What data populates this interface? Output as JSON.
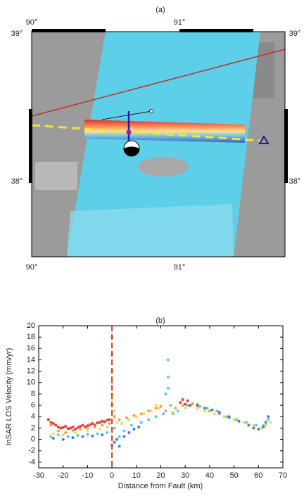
{
  "map": {
    "title": "(a)",
    "top_labels": [
      "90°",
      "91°"
    ],
    "bottom_labels": [
      "90°",
      "91°"
    ],
    "left_labels": [
      "39°",
      "38°"
    ],
    "right_labels": [
      "39°",
      "38°"
    ]
  },
  "chart_data": {
    "type": "scatter",
    "title": "(b)",
    "x_label": "Distance from Fault (km)",
    "y_label": "InSAR LOS Velocity (mm/yr)",
    "xlim": [
      -30,
      70
    ],
    "xticks": [
      -30,
      -20,
      -10,
      0,
      10,
      20,
      30,
      40,
      50,
      60,
      70
    ],
    "ylim": [
      -5,
      20
    ],
    "yticks": [
      -4,
      -2,
      0,
      2,
      4,
      6,
      8,
      10,
      12,
      14,
      16,
      18,
      20
    ],
    "reference_line": {
      "x": 0,
      "color": "#d04020"
    },
    "series": [
      {
        "color": "#d73027",
        "x": [
          -26,
          -25,
          -24,
          -23,
          -22,
          -21,
          -20,
          -19,
          -18,
          -17,
          -16,
          -15,
          -14,
          -13,
          -12,
          -11,
          -10,
          -9,
          -8,
          -7,
          -6,
          -5,
          -4,
          -3,
          -2,
          -1,
          28,
          29,
          30,
          31,
          32
        ],
        "values": [
          3.5,
          3,
          2.8,
          2.5,
          2.2,
          2,
          2.1,
          2.3,
          1.9,
          2,
          2.2,
          1.8,
          2.1,
          2.3,
          2.5,
          2.2,
          2.4,
          2.6,
          2.8,
          2.5,
          2.9,
          3,
          3.2,
          3.1,
          3.4,
          3.5,
          6.5,
          7,
          6.2,
          6.8,
          6
        ]
      },
      {
        "color": "#f98e3a",
        "x": [
          -25,
          -22,
          -19,
          -16,
          -13,
          -10,
          -7,
          -4,
          -1,
          0,
          0,
          0,
          0,
          0,
          0,
          1,
          3,
          6,
          9,
          12,
          15,
          18,
          20,
          22,
          26,
          29,
          33,
          36,
          40,
          44,
          48
        ],
        "values": [
          2.5,
          1.5,
          1.2,
          1.6,
          1.8,
          2,
          2.2,
          2.5,
          2.8,
          18,
          15,
          12,
          10,
          8,
          6,
          4,
          3.5,
          3.8,
          4.2,
          4.5,
          5,
          5.5,
          5.8,
          5,
          5.5,
          6,
          6.3,
          5.8,
          5,
          4.5,
          3.8
        ]
      },
      {
        "color": "#f6d53c",
        "x": [
          -24,
          -20,
          -15,
          -10,
          -5,
          -2,
          0,
          1,
          2,
          4,
          7,
          10,
          13,
          16,
          18,
          19,
          21,
          25,
          30,
          35,
          38,
          42,
          46,
          50,
          54,
          58,
          61,
          63,
          65
        ],
        "values": [
          1,
          0.8,
          1.2,
          1.5,
          1.8,
          2.2,
          7,
          5,
          3,
          2.8,
          3.5,
          4,
          4.5,
          5,
          6,
          5.5,
          4.5,
          4.8,
          5.5,
          5.5,
          5,
          4.5,
          4,
          3.5,
          3,
          2.5,
          2,
          2.5,
          3
        ]
      },
      {
        "color": "#4cc3e6",
        "x": [
          -25,
          -22,
          -18,
          -14,
          -10,
          -6,
          -2,
          1,
          3,
          5,
          8,
          12,
          15,
          18,
          21,
          22,
          23,
          23,
          23,
          24,
          25,
          27,
          31,
          35,
          39,
          43,
          47,
          51,
          55,
          59,
          62,
          64
        ],
        "values": [
          0.5,
          0.8,
          0.5,
          0.7,
          0.9,
          1,
          1.2,
          2,
          0.5,
          1.5,
          2.5,
          3,
          3.5,
          4,
          4.5,
          8,
          14,
          11,
          9,
          6,
          4.5,
          5,
          6,
          6.2,
          5.5,
          5,
          4,
          3.5,
          3,
          2.5,
          2.5,
          3.5
        ]
      },
      {
        "color": "#3a6fc4",
        "x": [
          -24,
          -20,
          -16,
          -12,
          -8,
          -4,
          0,
          1,
          2,
          3,
          5,
          7,
          9,
          11,
          35,
          38,
          41,
          44,
          48,
          52,
          56,
          58,
          60,
          62,
          63,
          64
        ],
        "values": [
          0.2,
          0,
          0.3,
          0.5,
          0.6,
          0.8,
          -1,
          -0.5,
          0,
          -1.2,
          0.5,
          1.2,
          1.8,
          2.2,
          6,
          5.5,
          5.2,
          4.8,
          4,
          3.2,
          2.5,
          2,
          1.8,
          2.2,
          3,
          4
        ]
      }
    ]
  }
}
